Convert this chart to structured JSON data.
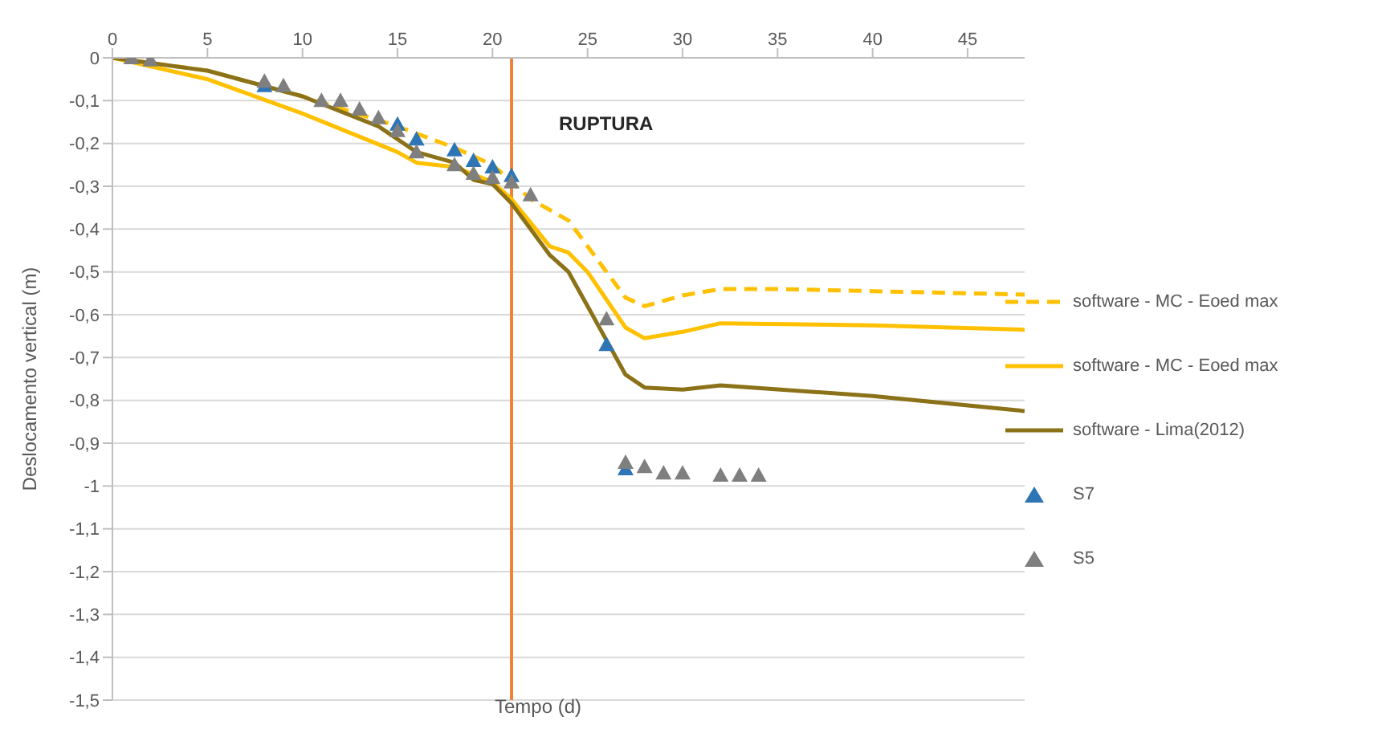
{
  "chart_data": {
    "type": "line",
    "xlabel": "Tempo (d)",
    "ylabel": "Deslocamento vertical (m)",
    "annotations": [
      "RUPTURA"
    ],
    "xlim": [
      0,
      48
    ],
    "xticks": [
      0,
      5,
      10,
      15,
      20,
      25,
      30,
      35,
      40,
      45
    ],
    "ylim": [
      -1.5,
      0
    ],
    "yticks": [
      {
        "value": -1.5,
        "label": "-1,5"
      },
      {
        "value": -1.4,
        "label": "-1,4"
      },
      {
        "value": -1.3,
        "label": "-1,3"
      },
      {
        "value": -1.2,
        "label": "-1,2"
      },
      {
        "value": -1.1,
        "label": "-1,1"
      },
      {
        "value": -1,
        "label": "-1"
      },
      {
        "value": -0.9,
        "label": "-0,9"
      },
      {
        "value": -0.8,
        "label": "-0,8"
      },
      {
        "value": -0.7,
        "label": "-0,7"
      },
      {
        "value": -0.6,
        "label": "-0,6"
      },
      {
        "value": -0.5,
        "label": "-0,5"
      },
      {
        "value": -0.4,
        "label": "-0,4"
      },
      {
        "value": -0.3,
        "label": "-0,3"
      },
      {
        "value": -0.2,
        "label": "-0,2"
      },
      {
        "value": -0.1,
        "label": "-0,1"
      },
      {
        "value": 0,
        "label": "0"
      }
    ],
    "grid": "y",
    "legend": "right",
    "ref_lines": [
      {
        "axis": "x",
        "value": 21,
        "color": "#f4813a"
      }
    ],
    "series": [
      {
        "name": "software - MC - Eoed max",
        "line_style": "dashed",
        "marker": "none",
        "color": "#ffc000",
        "x": [
          0,
          5,
          10,
          15,
          18,
          20,
          21,
          22,
          24,
          26,
          27,
          28,
          30,
          32,
          35,
          40,
          48
        ],
        "values": [
          0,
          -0.03,
          -0.09,
          -0.16,
          -0.21,
          -0.25,
          -0.29,
          -0.33,
          -0.38,
          -0.5,
          -0.56,
          -0.58,
          -0.555,
          -0.54,
          -0.54,
          -0.545,
          -0.553
        ]
      },
      {
        "name": "software - MC - Eoed max",
        "line_style": "solid",
        "marker": "none",
        "color": "#ffc000",
        "x": [
          0,
          5,
          10,
          15,
          16,
          18,
          20,
          21,
          23,
          24,
          25,
          27,
          28,
          30,
          32,
          40,
          48
        ],
        "values": [
          0,
          -0.05,
          -0.13,
          -0.22,
          -0.245,
          -0.255,
          -0.29,
          -0.33,
          -0.44,
          -0.455,
          -0.5,
          -0.63,
          -0.655,
          -0.64,
          -0.62,
          -0.625,
          -0.635
        ]
      },
      {
        "name": "software - Lima(2012)",
        "line_style": "solid",
        "marker": "none",
        "color": "#8b7118",
        "x": [
          0,
          5,
          10,
          14,
          16,
          18,
          19,
          20,
          21,
          23,
          24,
          25,
          27,
          28,
          30,
          32,
          40,
          48
        ],
        "values": [
          0,
          -0.03,
          -0.09,
          -0.16,
          -0.22,
          -0.245,
          -0.285,
          -0.295,
          -0.34,
          -0.46,
          -0.5,
          -0.58,
          -0.74,
          -0.77,
          -0.775,
          -0.765,
          -0.79,
          -0.825
        ]
      },
      {
        "name": "S7",
        "type": "scatter",
        "marker": "triangle",
        "color": "#2e75b6",
        "x": [
          8,
          15,
          16,
          18,
          19,
          20,
          21,
          26,
          27
        ],
        "values": [
          -0.065,
          -0.155,
          -0.19,
          -0.215,
          -0.24,
          -0.255,
          -0.275,
          -0.67,
          -0.96
        ]
      },
      {
        "name": "S5",
        "type": "scatter",
        "marker": "triangle",
        "color": "#7f7f7f",
        "x": [
          1,
          2,
          8,
          9,
          11,
          12,
          13,
          14,
          15,
          16,
          18,
          19,
          20,
          21,
          22,
          26,
          27,
          28,
          29,
          30,
          32,
          33,
          34
        ],
        "values": [
          0,
          -0.005,
          -0.055,
          -0.065,
          -0.1,
          -0.1,
          -0.12,
          -0.14,
          -0.17,
          -0.22,
          -0.25,
          -0.27,
          -0.28,
          -0.29,
          -0.32,
          -0.61,
          -0.945,
          -0.955,
          -0.97,
          -0.97,
          -0.975,
          -0.975,
          -0.975
        ]
      }
    ]
  }
}
